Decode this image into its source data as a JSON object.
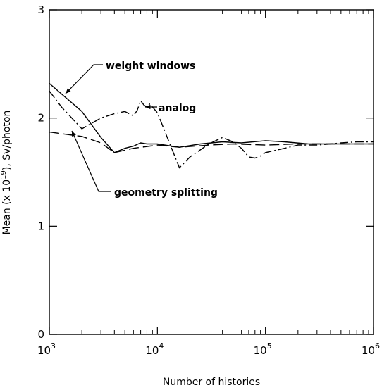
{
  "chart_data": {
    "type": "line",
    "x_scale": "log",
    "xlabel": "Number of histories",
    "ylabel": "Mean (x 10",
    "ylabel_exp": "19",
    "ylabel_suffix": "), Sv/photon",
    "xlim": [
      1000,
      1000000
    ],
    "ylim": [
      0,
      3
    ],
    "x_ticks": [
      {
        "value": 1000,
        "base": "10",
        "exp": "3"
      },
      {
        "value": 10000,
        "base": "10",
        "exp": "4"
      },
      {
        "value": 100000,
        "base": "10",
        "exp": "5"
      },
      {
        "value": 1000000,
        "base": "10",
        "exp": "6"
      }
    ],
    "y_ticks": [
      {
        "value": 0,
        "label": "0"
      },
      {
        "value": 1,
        "label": "1"
      },
      {
        "value": 2,
        "label": "2"
      },
      {
        "value": 3,
        "label": "3"
      }
    ],
    "grid": false,
    "series": [
      {
        "name": "weight windows",
        "dash": "solid",
        "x": [
          1000,
          2000,
          3000,
          4000,
          5000,
          6000,
          7000,
          8000,
          10000,
          16000,
          25000,
          40000,
          60000,
          100000,
          150000,
          250000,
          400000,
          600000,
          1000000
        ],
        "y": [
          2.32,
          2.06,
          1.82,
          1.68,
          1.72,
          1.74,
          1.77,
          1.76,
          1.76,
          1.73,
          1.76,
          1.78,
          1.77,
          1.79,
          1.78,
          1.76,
          1.76,
          1.76,
          1.76
        ]
      },
      {
        "name": "analog",
        "dash": "dashdot",
        "x": [
          1000,
          1300,
          2000,
          3000,
          4000,
          5000,
          6000,
          6500,
          7000,
          7500,
          8000,
          8500,
          10000,
          12000,
          16000,
          20000,
          30000,
          40000,
          50000,
          60000,
          70000,
          80000,
          90000,
          100000,
          150000,
          200000,
          300000,
          400000,
          500000,
          700000,
          1000000
        ],
        "y": [
          2.25,
          2.1,
          1.9,
          2.0,
          2.04,
          2.06,
          2.02,
          2.07,
          2.16,
          2.12,
          2.1,
          2.13,
          2.05,
          1.85,
          1.54,
          1.64,
          1.76,
          1.82,
          1.78,
          1.72,
          1.64,
          1.63,
          1.65,
          1.68,
          1.72,
          1.75,
          1.75,
          1.76,
          1.77,
          1.78,
          1.78
        ]
      },
      {
        "name": "geometry splitting",
        "dash": "dashed",
        "x": [
          1000,
          2000,
          3000,
          4000,
          6000,
          10000,
          16000,
          30000,
          50000,
          100000,
          200000,
          400000,
          1000000
        ],
        "y": [
          1.87,
          1.83,
          1.77,
          1.68,
          1.72,
          1.75,
          1.73,
          1.75,
          1.76,
          1.75,
          1.76,
          1.76,
          1.76
        ]
      }
    ],
    "annotations": [
      {
        "text": "weight windows",
        "series": "weight windows"
      },
      {
        "text": "analog",
        "series": "analog"
      },
      {
        "text": "geometry splitting",
        "series": "geometry splitting"
      }
    ]
  }
}
